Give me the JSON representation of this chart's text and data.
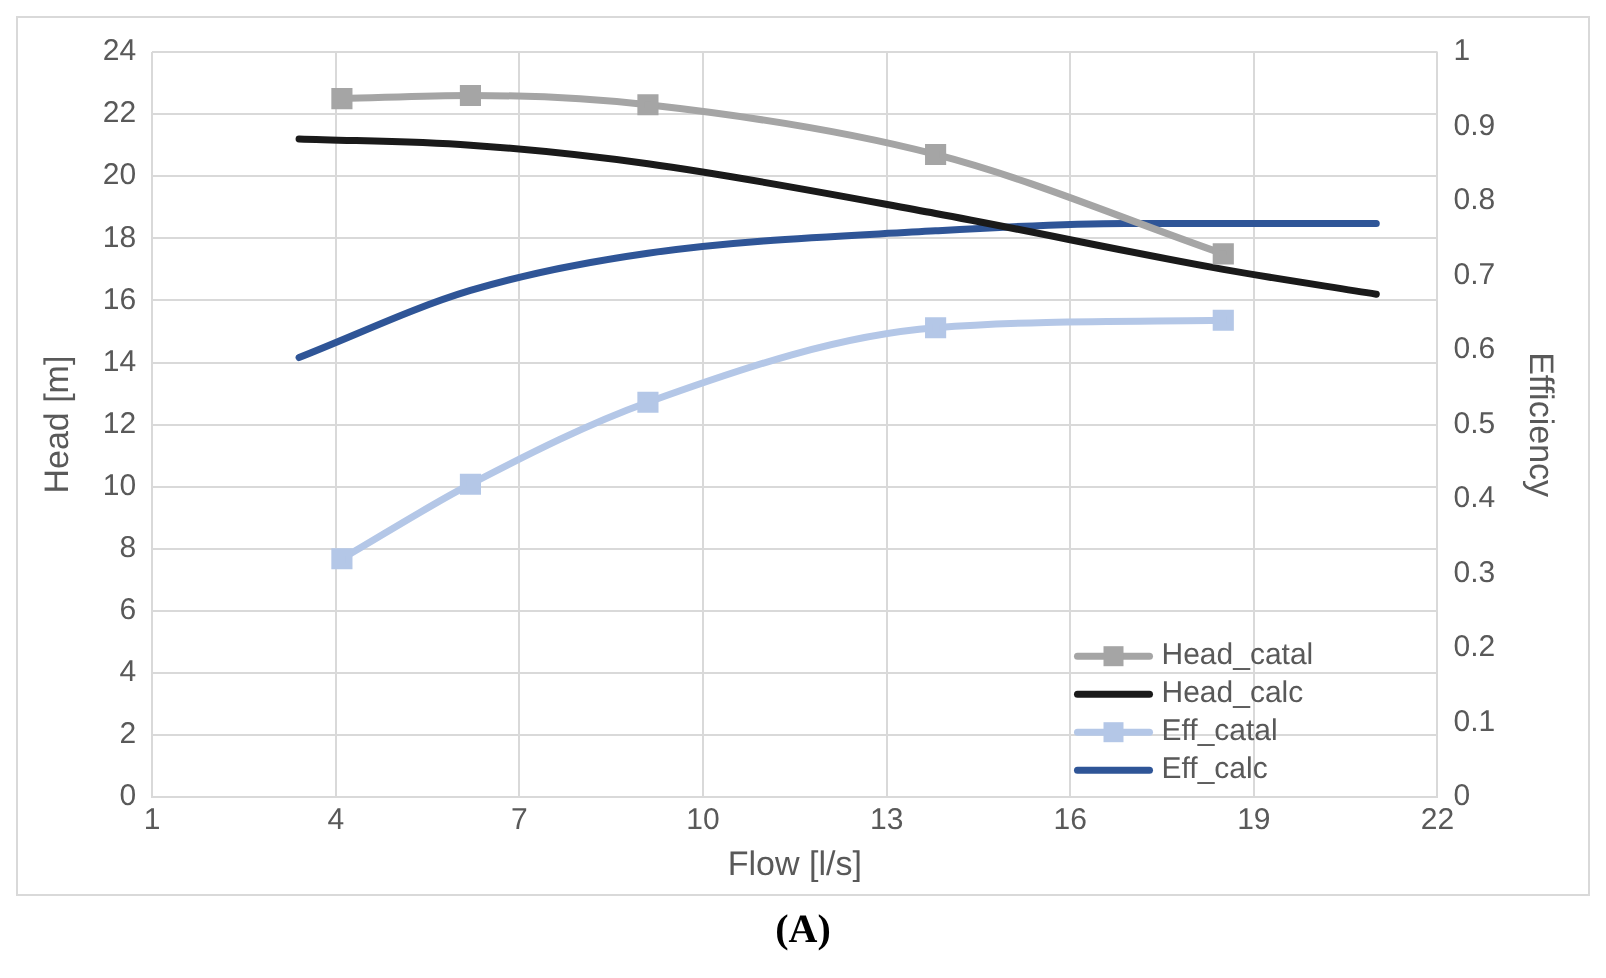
{
  "chart_data": {
    "type": "line",
    "xlabel": "Flow [l/s]",
    "ylabel": "Head [m]",
    "y2label": "Efficiency",
    "annotations": [
      "(A)"
    ],
    "xlim": [
      1,
      22
    ],
    "xticks": [
      1,
      4,
      7,
      10,
      13,
      16,
      19,
      22
    ],
    "ylim": [
      0,
      24
    ],
    "yticks": [
      0,
      2,
      4,
      6,
      8,
      10,
      12,
      14,
      16,
      18,
      20,
      22,
      24
    ],
    "y2lim": [
      0,
      1
    ],
    "y2ticks": [
      0,
      0.1,
      0.2,
      0.3,
      0.4,
      0.5,
      0.6,
      0.7,
      0.8,
      0.9,
      1
    ],
    "grid": true,
    "legend": "bottom right",
    "line_style": "solid",
    "series": [
      {
        "name": "Head_catal",
        "color": "#a5a5a5",
        "marker": "square",
        "x": [
          4.1,
          6.2,
          9.1,
          13.8,
          18.5
        ],
        "values": [
          22.5,
          22.6,
          22.3,
          20.7,
          17.5
        ]
      },
      {
        "name": "Head_calc",
        "color": "#1a1a1a",
        "marker": "none",
        "x": [
          3.4,
          6.2,
          9.1,
          13.8,
          18.5,
          21
        ],
        "values": [
          21.2,
          21.0,
          20.4,
          18.8,
          17.0,
          16.2
        ]
      },
      {
        "name": "Eff_catal",
        "color": "#b4c7e7",
        "marker": "square",
        "axis": "y2",
        "x": [
          4.1,
          6.2,
          9.1,
          13.8,
          18.5
        ],
        "values": [
          0.32,
          0.42,
          0.53,
          0.63,
          0.64
        ]
      },
      {
        "name": "Eff_calc",
        "color": "#2f5597",
        "marker": "none",
        "axis": "y2",
        "x": [
          3.4,
          6.2,
          9.1,
          13.8,
          16.9,
          21
        ],
        "values": [
          0.59,
          0.68,
          0.73,
          0.76,
          0.77,
          0.77
        ]
      }
    ]
  }
}
